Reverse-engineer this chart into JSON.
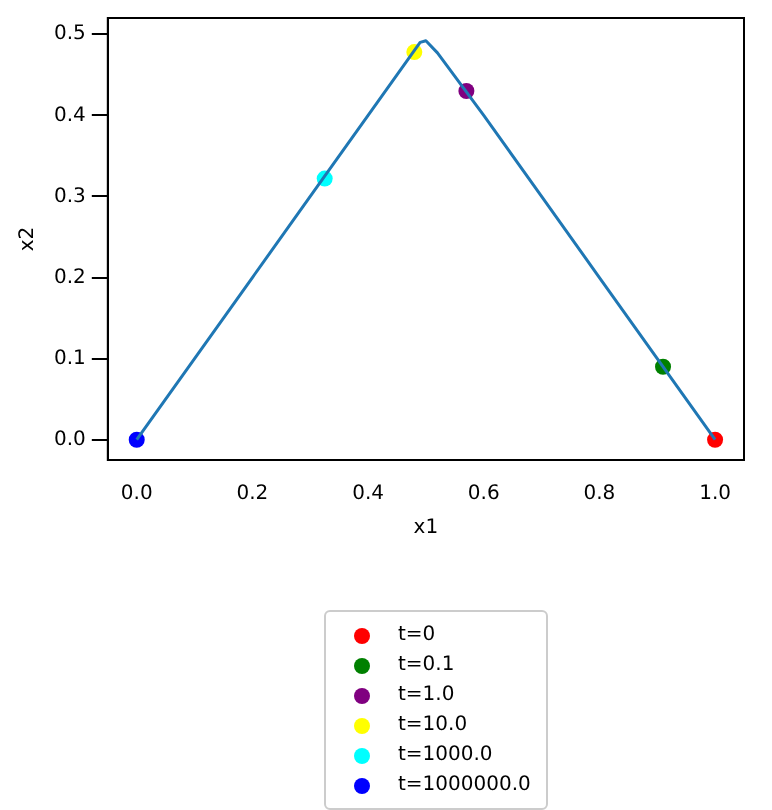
{
  "chart_data": {
    "type": "scatter",
    "xlabel": "x1",
    "ylabel": "x2",
    "xlim": [
      -0.05,
      1.05
    ],
    "ylim": [
      -0.025,
      0.52
    ],
    "xticks": [
      {
        "value": 0,
        "label": "0.0"
      },
      {
        "value": 0.2,
        "label": "0.2"
      },
      {
        "value": 0.4,
        "label": "0.4"
      },
      {
        "value": 0.6,
        "label": "0.6"
      },
      {
        "value": 0.8,
        "label": "0.8"
      },
      {
        "value": 1,
        "label": "1.0"
      }
    ],
    "yticks": [
      {
        "value": 0,
        "label": "0.0"
      },
      {
        "value": 0.1,
        "label": "0.1"
      },
      {
        "value": 0.2,
        "label": "0.2"
      },
      {
        "value": 0.3,
        "label": "0.3"
      },
      {
        "value": 0.4,
        "label": "0.4"
      },
      {
        "value": 0.5,
        "label": "0.5"
      }
    ],
    "grid": false,
    "legend": "bottom",
    "marker": "circle",
    "series": [
      {
        "type": "line",
        "marker": "none",
        "color": "#1f77b4",
        "x": [
          0,
          0.1,
          0.2,
          0.3,
          0.4,
          0.47,
          0.49,
          0.5,
          0.52,
          0.6,
          0.7,
          0.8,
          0.9,
          1
        ],
        "values": [
          0,
          0.1,
          0.2,
          0.3,
          0.4,
          0.47,
          0.49,
          0.492,
          0.477,
          0.4,
          0.3,
          0.2,
          0.1,
          0
        ]
      },
      {
        "name": "t=0",
        "color": "#ff0000",
        "x": [
          1
        ],
        "values": [
          0
        ]
      },
      {
        "name": "t=0.1",
        "color": "#008000",
        "x": [
          0.91
        ],
        "values": [
          0.09
        ]
      },
      {
        "name": "t=1.0",
        "color": "#800080",
        "x": [
          0.57
        ],
        "values": [
          0.43
        ]
      },
      {
        "name": "t=10.0",
        "color": "#ffff00",
        "x": [
          0.48
        ],
        "values": [
          0.478
        ]
      },
      {
        "name": "t=1000.0",
        "color": "#00ffff",
        "x": [
          0.325
        ],
        "values": [
          0.322
        ]
      },
      {
        "name": "t=1000000.0",
        "color": "#0000ff",
        "x": [
          0
        ],
        "values": [
          0
        ]
      }
    ]
  }
}
